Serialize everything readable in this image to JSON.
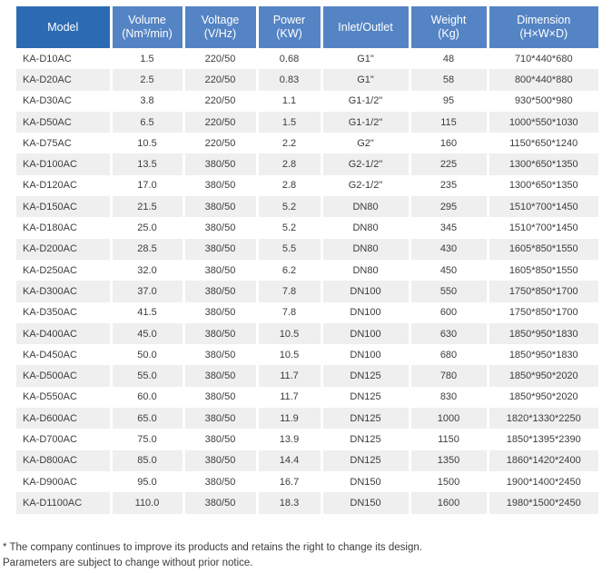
{
  "colors": {
    "header_model_bg": "#2c6bb3",
    "header_bg": "#5484c4",
    "header_text": "#ffffff",
    "stripe_bg": "#efefef",
    "body_text": "#3c3c3c"
  },
  "table": {
    "headers": [
      {
        "key": "model",
        "label": "Model",
        "sub": ""
      },
      {
        "key": "volume",
        "label": "Volume",
        "sub": "(Nm³/min)"
      },
      {
        "key": "voltage",
        "label": "Voltage",
        "sub": "(V/Hz)"
      },
      {
        "key": "power",
        "label": "Power",
        "sub": "(KW)"
      },
      {
        "key": "inlet",
        "label": "Inlet/Outlet",
        "sub": ""
      },
      {
        "key": "weight",
        "label": "Weight",
        "sub": "(Kg)"
      },
      {
        "key": "dimension",
        "label": "Dimension",
        "sub": "(H×W×D)"
      }
    ],
    "rows": [
      [
        "KA-D10AC",
        "1.5",
        "220/50",
        "0.68",
        "G1\"",
        "48",
        "710*440*680"
      ],
      [
        "KA-D20AC",
        "2.5",
        "220/50",
        "0.83",
        "G1\"",
        "58",
        "800*440*880"
      ],
      [
        "KA-D30AC",
        "3.8",
        "220/50",
        "1.1",
        "G1-1/2\"",
        "95",
        "930*500*980"
      ],
      [
        "KA-D50AC",
        "6.5",
        "220/50",
        "1.5",
        "G1-1/2\"",
        "115",
        "1000*550*1030"
      ],
      [
        "KA-D75AC",
        "10.5",
        "220/50",
        "2.2",
        "G2\"",
        "160",
        "1150*650*1240"
      ],
      [
        "KA-D100AC",
        "13.5",
        "380/50",
        "2.8",
        "G2-1/2\"",
        "225",
        "1300*650*1350"
      ],
      [
        "KA-D120AC",
        "17.0",
        "380/50",
        "2.8",
        "G2-1/2\"",
        "235",
        "1300*650*1350"
      ],
      [
        "KA-D150AC",
        "21.5",
        "380/50",
        "5.2",
        "DN80",
        "295",
        "1510*700*1450"
      ],
      [
        "KA-D180AC",
        "25.0",
        "380/50",
        "5.2",
        "DN80",
        "345",
        "1510*700*1450"
      ],
      [
        "KA-D200AC",
        "28.5",
        "380/50",
        "5.5",
        "DN80",
        "430",
        "1605*850*1550"
      ],
      [
        "KA-D250AC",
        "32.0",
        "380/50",
        "6.2",
        "DN80",
        "450",
        "1605*850*1550"
      ],
      [
        "KA-D300AC",
        "37.0",
        "380/50",
        "7.8",
        "DN100",
        "550",
        "1750*850*1700"
      ],
      [
        "KA-D350AC",
        "41.5",
        "380/50",
        "7.8",
        "DN100",
        "600",
        "1750*850*1700"
      ],
      [
        "KA-D400AC",
        "45.0",
        "380/50",
        "10.5",
        "DN100",
        "630",
        "1850*950*1830"
      ],
      [
        "KA-D450AC",
        "50.0",
        "380/50",
        "10.5",
        "DN100",
        "680",
        "1850*950*1830"
      ],
      [
        "KA-D500AC",
        "55.0",
        "380/50",
        "11.7",
        "DN125",
        "780",
        "1850*950*2020"
      ],
      [
        "KA-D550AC",
        "60.0",
        "380/50",
        "11.7",
        "DN125",
        "830",
        "1850*950*2020"
      ],
      [
        "KA-D600AC",
        "65.0",
        "380/50",
        "11.9",
        "DN125",
        "1000",
        "1820*1330*2250"
      ],
      [
        "KA-D700AC",
        "75.0",
        "380/50",
        "13.9",
        "DN125",
        "1150",
        "1850*1395*2390"
      ],
      [
        "KA-D800AC",
        "85.0",
        "380/50",
        "14.4",
        "DN125",
        "1350",
        "1860*1420*2400"
      ],
      [
        "KA-D900AC",
        "95.0",
        "380/50",
        "16.7",
        "DN150",
        "1500",
        "1900*1400*2450"
      ],
      [
        "KA-D1100AC",
        "110.0",
        "380/50",
        "18.3",
        "DN150",
        "1600",
        "1980*1500*2450"
      ]
    ]
  },
  "footnote": {
    "line1": "* The company continues to improve its products and retains the right to change its design.",
    "line2": "Parameters are subject to change without prior notice."
  }
}
